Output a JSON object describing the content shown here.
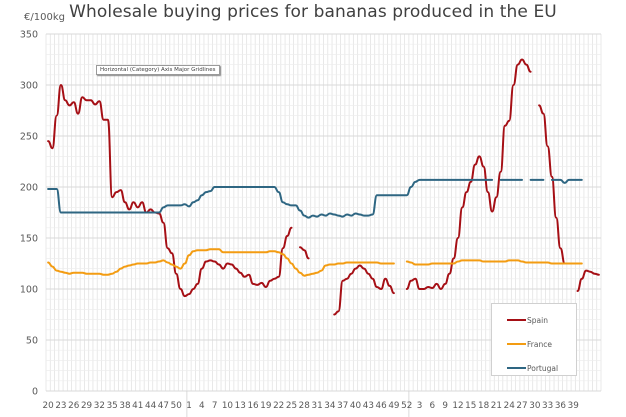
{
  "chart_data": {
    "type": "line",
    "title": "Wholesale buying prices for bananas produced in the EU",
    "ylabel": "€/100kg",
    "xlabel": "",
    "ylim": [
      0,
      350
    ],
    "yticks": [
      0,
      50,
      100,
      150,
      200,
      250,
      300,
      350
    ],
    "grid": true,
    "legend_position": "bottom-right",
    "tooltip": "Horizontal (Category) Axis Major Gridlines",
    "x_week_labels": [
      "20",
      "23",
      "26",
      "29",
      "32",
      "35",
      "38",
      "41",
      "44",
      "47",
      "50",
      "1",
      "4",
      "7",
      "10",
      "13",
      "16",
      "19",
      "22",
      "25",
      "28",
      "31",
      "34",
      "37",
      "40",
      "43",
      "46",
      "49",
      "52",
      "3",
      "6",
      "9",
      "12",
      "15",
      "18",
      "21",
      "24",
      "27",
      "30",
      "33",
      "36",
      "39"
    ],
    "x_categories_note": "weekly, weeks 20-52, 1-52, 1-41",
    "series": [
      {
        "name": "Spain",
        "color": "#a50f15",
        "values": [
          245,
          238,
          270,
          300,
          285,
          280,
          283,
          272,
          288,
          285,
          285,
          281,
          284,
          266,
          266,
          190,
          195,
          197,
          185,
          178,
          185,
          180,
          185,
          175,
          178,
          175,
          174,
          165,
          140,
          135,
          115,
          100,
          93,
          95,
          100,
          105,
          120,
          127,
          128,
          127,
          124,
          120,
          125,
          124,
          120,
          116,
          112,
          114,
          105,
          104,
          106,
          102,
          108,
          110,
          112,
          140,
          152,
          160,
          null,
          141,
          138,
          130,
          null,
          null,
          null,
          null,
          null,
          75,
          78,
          108,
          110,
          115,
          120,
          123,
          120,
          115,
          110,
          102,
          100,
          110,
          103,
          96,
          null,
          null,
          100,
          108,
          110,
          100,
          100,
          102,
          101,
          105,
          100,
          105,
          115,
          130,
          150,
          180,
          195,
          205,
          222,
          230,
          220,
          195,
          176,
          190,
          215,
          260,
          265,
          300,
          320,
          325,
          320,
          313,
          null,
          280,
          272,
          240,
          210,
          170,
          140,
          125,
          null,
          null,
          98,
          110,
          118,
          117,
          115,
          114
        ]
      },
      {
        "name": "France",
        "color": "#f39c12",
        "values": [
          126,
          122,
          118,
          117,
          116,
          115,
          116,
          116,
          116,
          115,
          115,
          115,
          115,
          114,
          114,
          115,
          117,
          120,
          122,
          123,
          124,
          125,
          125,
          125,
          126,
          126,
          127,
          128,
          126,
          124,
          122,
          120,
          125,
          133,
          137,
          138,
          138,
          138,
          139,
          139,
          139,
          136,
          136,
          136,
          136,
          136,
          136,
          136,
          136,
          136,
          136,
          136,
          137,
          137,
          136,
          134,
          130,
          125,
          120,
          116,
          113,
          114,
          115,
          116,
          118,
          123,
          124,
          124,
          125,
          125,
          126,
          126,
          126,
          126,
          126,
          126,
          126,
          126,
          125,
          125,
          125,
          125,
          null,
          null,
          127,
          126,
          124,
          124,
          124,
          124,
          125,
          125,
          125,
          125,
          125,
          125,
          127,
          128,
          128,
          128,
          128,
          128,
          127,
          127,
          127,
          127,
          127,
          127,
          128,
          128,
          128,
          127,
          126,
          126,
          126,
          126,
          126,
          126,
          125,
          125,
          125,
          125,
          125,
          125,
          125,
          125
        ]
      },
      {
        "name": "Portugal",
        "color": "#2e6682",
        "values": [
          198,
          198,
          198,
          175,
          175,
          175,
          175,
          175,
          175,
          175,
          175,
          175,
          175,
          175,
          175,
          175,
          175,
          175,
          175,
          175,
          175,
          175,
          175,
          175,
          175,
          175,
          175,
          180,
          182,
          182,
          182,
          182,
          183,
          181,
          185,
          187,
          192,
          195,
          196,
          200,
          200,
          200,
          200,
          200,
          200,
          200,
          200,
          200,
          200,
          200,
          200,
          200,
          200,
          200,
          195,
          185,
          183,
          182,
          182,
          177,
          172,
          170,
          172,
          171,
          173,
          172,
          174,
          173,
          172,
          171,
          173,
          172,
          174,
          173,
          172,
          172,
          173,
          192,
          192,
          192,
          192,
          192,
          192,
          192,
          192,
          200,
          205,
          207,
          207,
          207,
          207,
          207,
          207,
          207,
          207,
          207,
          207,
          207,
          207,
          207,
          207,
          207,
          207,
          207,
          207,
          null,
          207,
          207,
          207,
          207,
          207,
          207,
          null,
          207,
          207,
          207,
          207,
          null,
          207,
          207,
          207,
          204,
          207,
          207,
          207,
          207
        ]
      }
    ]
  }
}
